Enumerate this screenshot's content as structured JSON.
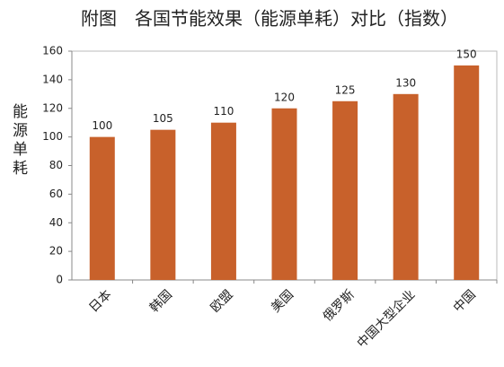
{
  "chart_data": {
    "type": "bar",
    "title": "附图　各国节能效果（能源单耗）对比（指数）",
    "y_label": "能源单耗",
    "categories": [
      "日本",
      "韩国",
      "欧盟",
      "美国",
      "俄罗斯",
      "中国大型企业",
      "中国"
    ],
    "values": [
      100,
      105,
      110,
      120,
      125,
      130,
      150
    ],
    "color": "#c8612b",
    "ylim": [
      0,
      160
    ],
    "yticks": [
      0,
      20,
      40,
      60,
      80,
      100,
      120,
      140,
      160
    ],
    "grid": false
  }
}
